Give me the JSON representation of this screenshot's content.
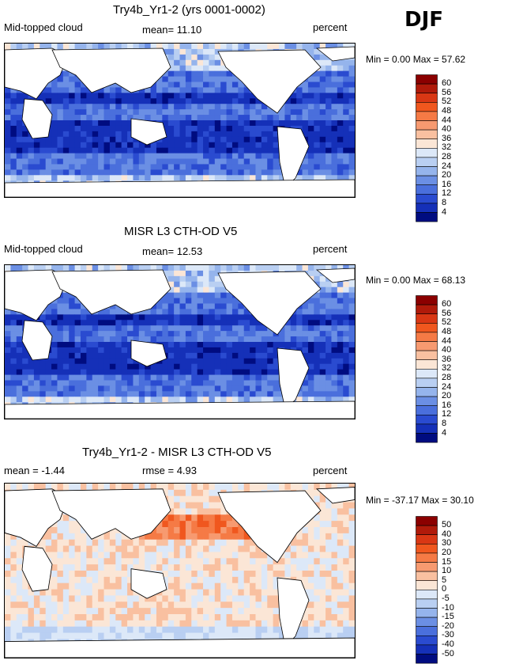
{
  "season": "DJF",
  "chart_data": [
    {
      "type": "heatmap",
      "title": "Try4b_Yr1-2 (yrs 0001-0002)",
      "left_label": "Mid-topped cloud",
      "center_label": "mean=   11.10",
      "units": "percent",
      "minmax": "Min =    0.00  Max =   57.62",
      "min": 0.0,
      "max": 57.62,
      "mean": 11.1,
      "colorbar_levels": [
        "60",
        "56",
        "52",
        "48",
        "44",
        "40",
        "36",
        "32",
        "28",
        "24",
        "20",
        "16",
        "12",
        "8",
        "4"
      ],
      "colorbar_colors": [
        "#8b0000",
        "#b01a0a",
        "#d93714",
        "#f0571e",
        "#f57a45",
        "#f79a70",
        "#f9c0a0",
        "#fbe6d6",
        "#dce8f8",
        "#b9cff2",
        "#95b4ec",
        "#6b8fe4",
        "#4a6fdc",
        "#2a4bd0",
        "#1530b8",
        "#000c80"
      ]
    },
    {
      "type": "heatmap",
      "title": "MISR L3 CTH-OD V5",
      "left_label": "Mid-topped cloud",
      "center_label": "mean=   12.53",
      "units": "percent",
      "minmax": "Min =    0.00  Max =   68.13",
      "min": 0.0,
      "max": 68.13,
      "mean": 12.53,
      "colorbar_levels": [
        "60",
        "56",
        "52",
        "48",
        "44",
        "40",
        "36",
        "32",
        "28",
        "24",
        "20",
        "16",
        "12",
        "8",
        "4"
      ],
      "colorbar_colors": [
        "#8b0000",
        "#b01a0a",
        "#d93714",
        "#f0571e",
        "#f57a45",
        "#f79a70",
        "#f9c0a0",
        "#fbe6d6",
        "#dce8f8",
        "#b9cff2",
        "#95b4ec",
        "#6b8fe4",
        "#4a6fdc",
        "#2a4bd0",
        "#1530b8",
        "#000c80"
      ]
    },
    {
      "type": "heatmap",
      "title": "Try4b_Yr1-2 - MISR L3 CTH-OD V5",
      "left_label": "mean =   -1.44",
      "center_label": "rmse =    4.93",
      "units": "percent",
      "minmax": "Min =  -37.17  Max =   30.10",
      "min": -37.17,
      "max": 30.1,
      "mean": -1.44,
      "rmse": 4.93,
      "colorbar_levels": [
        "50",
        "40",
        "30",
        "20",
        "15",
        "10",
        "5",
        "0",
        "-5",
        "-10",
        "-15",
        "-20",
        "-30",
        "-40",
        "-50"
      ],
      "colorbar_colors": [
        "#8b0000",
        "#b01a0a",
        "#d93714",
        "#f0571e",
        "#f57a45",
        "#f79a70",
        "#f9c0a0",
        "#fbe6d6",
        "#dce8f8",
        "#b9cff2",
        "#95b4ec",
        "#6b8fe4",
        "#4a6fdc",
        "#2a4bd0",
        "#1530b8",
        "#000c80"
      ]
    }
  ]
}
